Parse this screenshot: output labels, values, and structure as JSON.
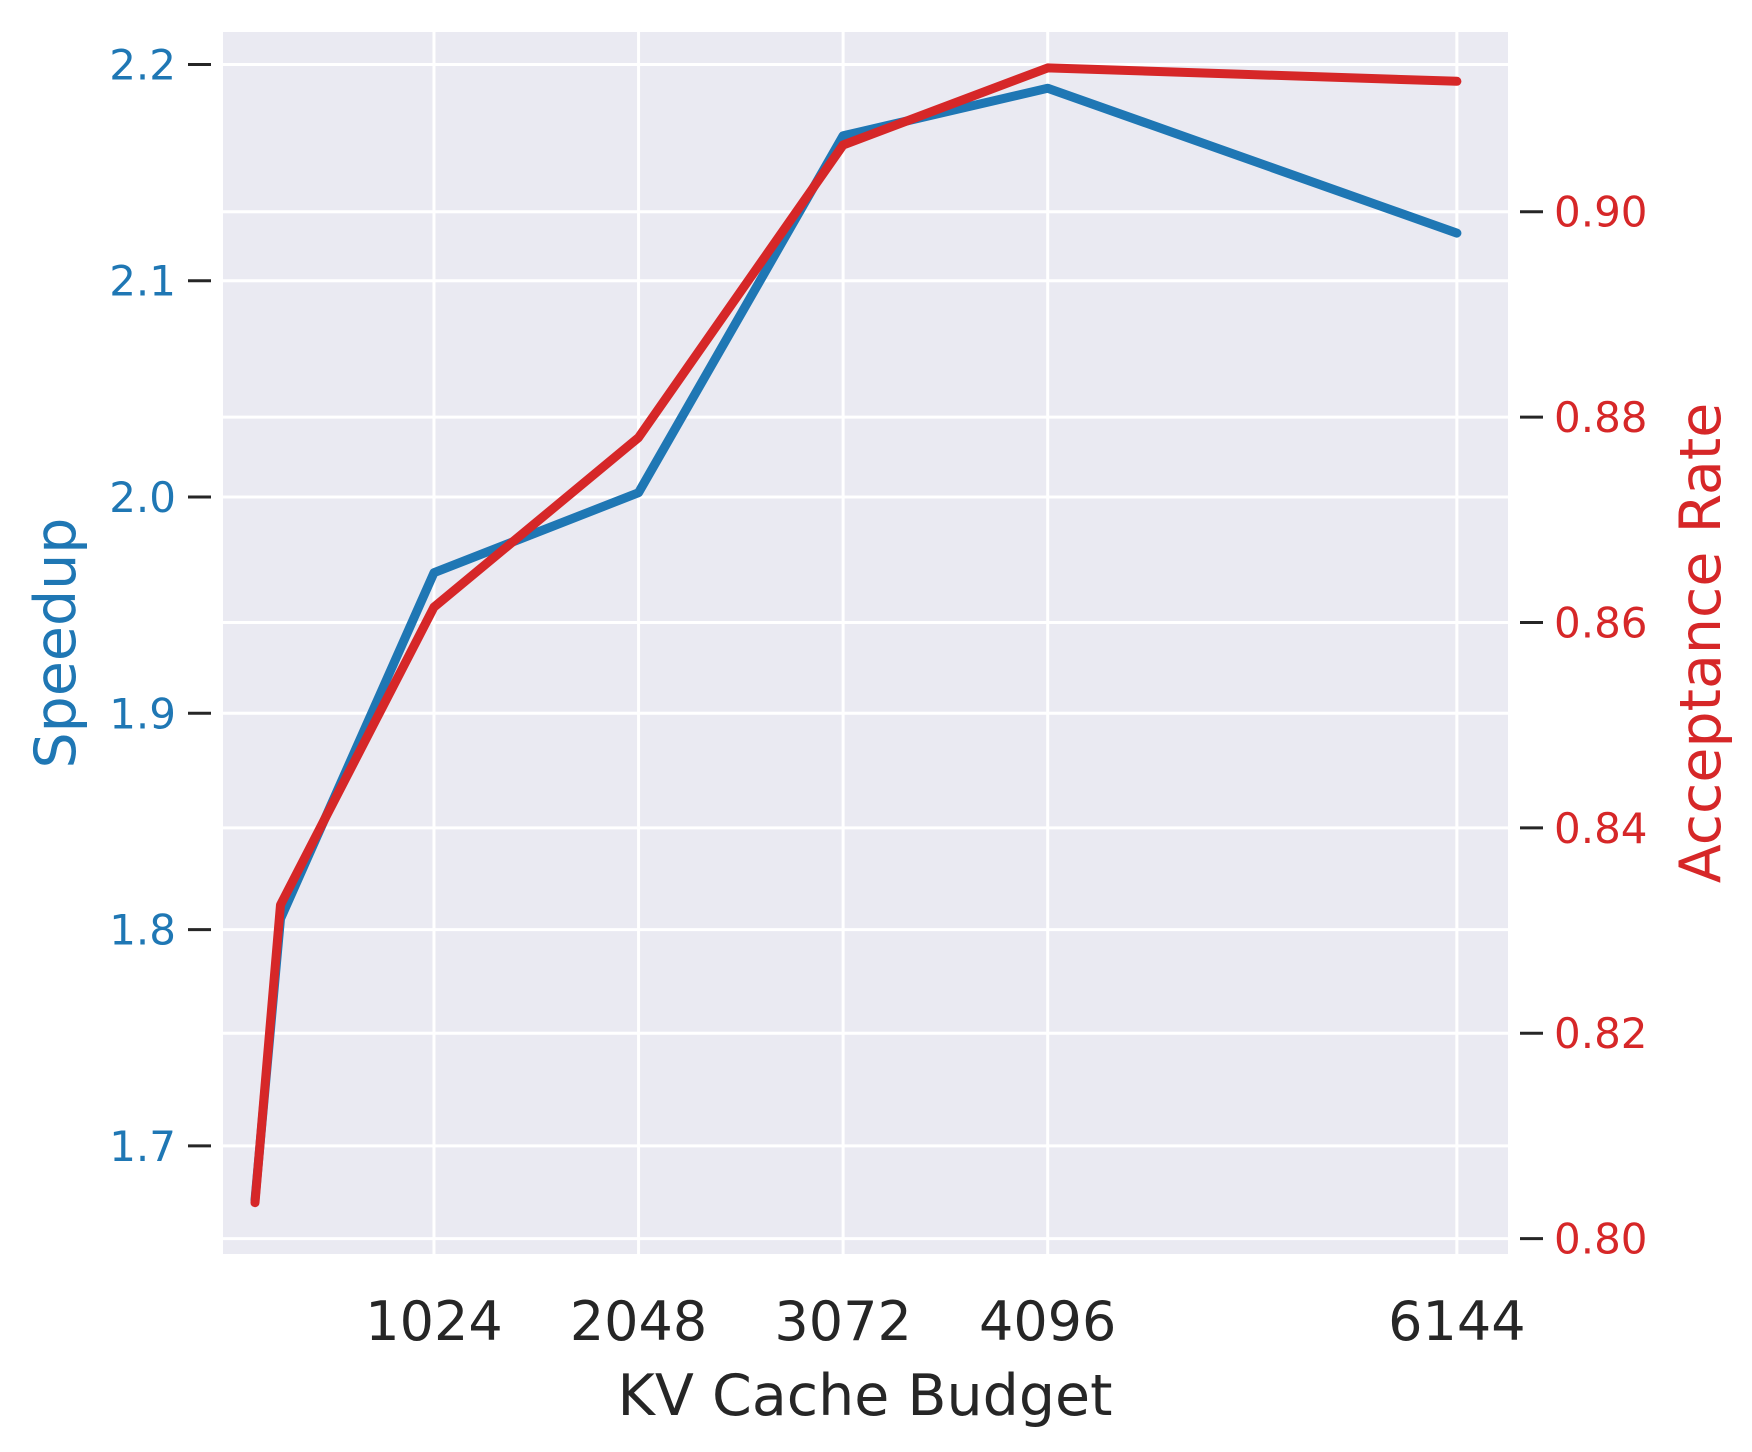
{
  "chart_data": {
    "type": "line",
    "xlabel": "KV Cache Budget",
    "x": [
      128,
      256,
      1024,
      2048,
      3072,
      4096,
      6144
    ],
    "xticks": [
      1024,
      2048,
      3072,
      4096,
      6144
    ],
    "xlim": [
      -32,
      6400
    ],
    "grid": true,
    "legend": "none",
    "series": [
      {
        "axis": "left",
        "color": "#1f77b4",
        "values": [
          1.675,
          1.805,
          1.965,
          2.002,
          2.167,
          2.189,
          2.122
        ]
      },
      {
        "axis": "right",
        "color": "#d62728",
        "values": [
          0.8035,
          0.8325,
          0.8615,
          0.878,
          0.9065,
          0.914,
          0.9127
        ]
      }
    ],
    "left_axis": {
      "label": "Speedup",
      "color": "#1f77b4",
      "ylim": [
        1.65,
        2.215
      ],
      "ticks": [
        1.7,
        1.8,
        1.9,
        2.0,
        2.1,
        2.2
      ],
      "tick_labels": [
        "1.7",
        "1.8",
        "1.9",
        "2.0",
        "2.1",
        "2.2"
      ]
    },
    "right_axis": {
      "label": "Acceptance Rate",
      "color": "#d62728",
      "ylim": [
        0.7985,
        0.9175
      ],
      "ticks": [
        0.8,
        0.82,
        0.84,
        0.86,
        0.88,
        0.9
      ],
      "tick_labels": [
        "0.80",
        "0.82",
        "0.84",
        "0.86",
        "0.88",
        "0.90"
      ]
    }
  }
}
